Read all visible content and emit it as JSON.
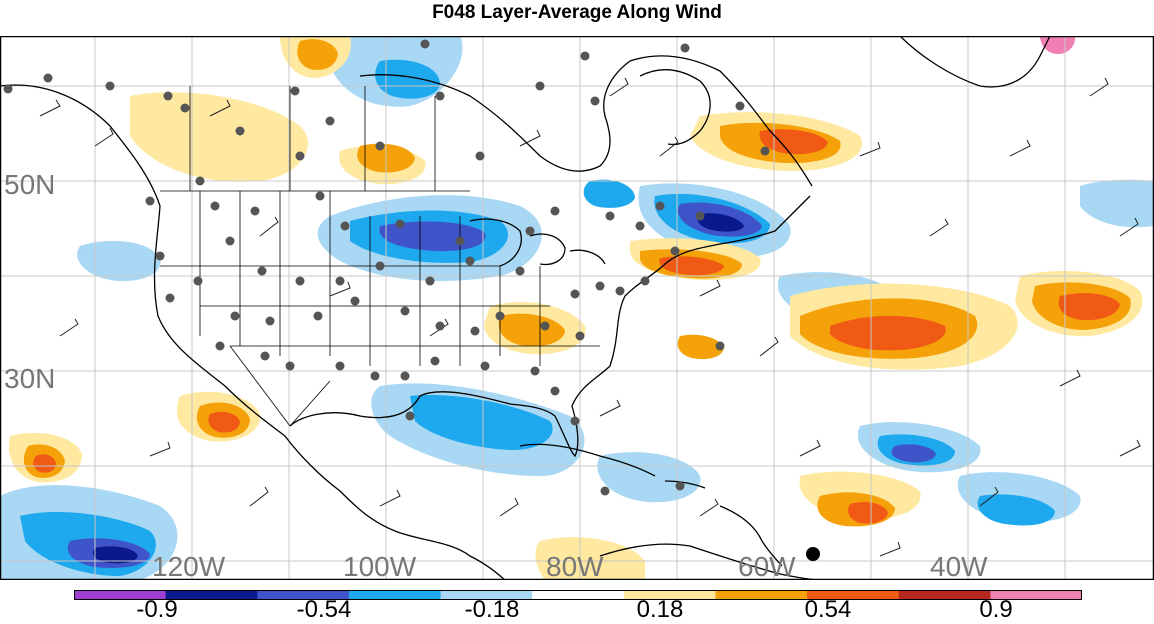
{
  "title": "F048 Layer-Average Along Wind",
  "axis_labels": {
    "lat": [
      "50N",
      "30N"
    ],
    "lon": [
      "120W",
      "100W",
      "80W",
      "60W",
      "40W"
    ]
  },
  "colorbar": {
    "labels": [
      "-0.9",
      "-0.54",
      "-0.18",
      "0.18",
      "0.54",
      "0.9"
    ],
    "colors": [
      "#a040d0",
      "#0a1a8c",
      "#3f54c8",
      "#1ea8ee",
      "#a8d8f4",
      "#ffffff",
      "#ffe9a0",
      "#f5a20a",
      "#f05a14",
      "#b4281e",
      "#f080b4"
    ]
  },
  "legend_colors": {
    "strong_negative": "#3f54c8",
    "negative": "#1ea8ee",
    "weak_negative": "#a8d8f4",
    "weak_positive": "#ffe9a0",
    "positive": "#f5a20a",
    "strong_positive": "#f05a14",
    "station_dot": "#555555"
  }
}
